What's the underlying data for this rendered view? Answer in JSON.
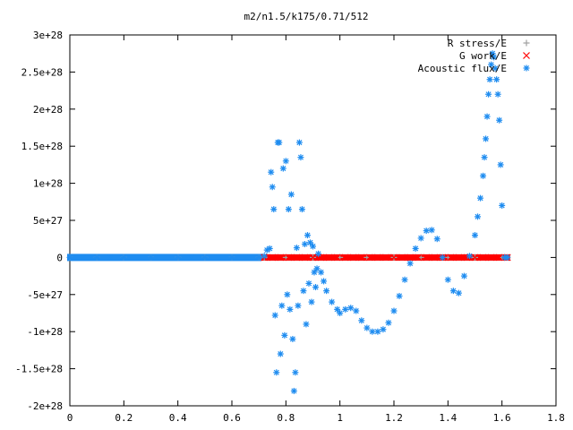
{
  "chart_data": {
    "type": "scatter",
    "title": "m2/n1.5/k175/0.71/512",
    "xlabel": "",
    "ylabel": "",
    "xlim": [
      0,
      1.8
    ],
    "ylim": [
      -2e+28,
      3e+28
    ],
    "x_ticks": [
      {
        "value": 0,
        "label": "0"
      },
      {
        "value": 0.2,
        "label": "0.2"
      },
      {
        "value": 0.4,
        "label": "0.4"
      },
      {
        "value": 0.6,
        "label": "0.6"
      },
      {
        "value": 0.8,
        "label": "0.8"
      },
      {
        "value": 1.0,
        "label": "1"
      },
      {
        "value": 1.2,
        "label": "1.2"
      },
      {
        "value": 1.4,
        "label": "1.4"
      },
      {
        "value": 1.6,
        "label": "1.6"
      },
      {
        "value": 1.8,
        "label": "1.8"
      }
    ],
    "y_ticks": [
      {
        "value": 3e+28,
        "label": "3e+28"
      },
      {
        "value": 2.5e+28,
        "label": "2.5e+28"
      },
      {
        "value": 2e+28,
        "label": "2e+28"
      },
      {
        "value": 1.5e+28,
        "label": "1.5e+28"
      },
      {
        "value": 1e+28,
        "label": "1e+28"
      },
      {
        "value": 5e+27,
        "label": "5e+27"
      },
      {
        "value": 0,
        "label": "0"
      },
      {
        "value": -5e+27,
        "label": "-5e+27"
      },
      {
        "value": -1e+28,
        "label": "-1e+28"
      },
      {
        "value": -1.5e+28,
        "label": "-1.5e+28"
      },
      {
        "value": -2e+28,
        "label": "-2e+28"
      }
    ],
    "grid": false,
    "legend_position": "top-right",
    "series": [
      {
        "name": "R stress/E",
        "marker": "plus",
        "color": "#a0a0a0",
        "x": [
          0.0,
          0.1,
          0.2,
          0.3,
          0.4,
          0.5,
          0.6,
          0.7,
          0.72,
          0.8,
          0.9,
          1.0,
          1.1,
          1.2,
          1.3,
          1.4,
          1.5,
          1.6,
          1.62
        ],
        "y": [
          0,
          0,
          0,
          0,
          0,
          0,
          0,
          0,
          0,
          0,
          0,
          0,
          0,
          0,
          0,
          0,
          0,
          0,
          0
        ]
      },
      {
        "name": "G work/E",
        "marker": "cross",
        "color": "#ff0000",
        "x": [
          0.72,
          0.75,
          0.78,
          0.81,
          0.84,
          0.87,
          0.9,
          0.93,
          0.96,
          0.99,
          1.02,
          1.05,
          1.08,
          1.11,
          1.14,
          1.17,
          1.2,
          1.23,
          1.26,
          1.29,
          1.32,
          1.35,
          1.38,
          1.41,
          1.44,
          1.47,
          1.5,
          1.53,
          1.56,
          1.59,
          1.62
        ],
        "y": [
          0,
          0,
          0,
          0,
          0,
          0,
          0,
          0,
          0,
          0,
          0,
          0,
          0,
          0,
          0,
          0,
          0,
          0,
          0,
          0,
          0,
          0,
          0,
          0,
          0,
          0,
          0,
          0,
          0,
          0,
          0
        ]
      },
      {
        "name": "Acoustic flux/E",
        "marker": "star",
        "color": "#1e8cf0",
        "x": [
          0.0,
          0.05,
          0.1,
          0.15,
          0.2,
          0.25,
          0.3,
          0.35,
          0.4,
          0.45,
          0.5,
          0.55,
          0.6,
          0.65,
          0.7,
          0.72,
          0.73,
          0.74,
          0.745,
          0.75,
          0.755,
          0.76,
          0.765,
          0.77,
          0.775,
          0.78,
          0.785,
          0.79,
          0.795,
          0.8,
          0.805,
          0.81,
          0.815,
          0.82,
          0.825,
          0.83,
          0.835,
          0.84,
          0.845,
          0.85,
          0.855,
          0.86,
          0.865,
          0.87,
          0.875,
          0.88,
          0.885,
          0.89,
          0.895,
          0.9,
          0.905,
          0.91,
          0.915,
          0.92,
          0.93,
          0.94,
          0.95,
          0.97,
          0.99,
          1.0,
          1.02,
          1.04,
          1.06,
          1.08,
          1.1,
          1.12,
          1.14,
          1.16,
          1.18,
          1.2,
          1.22,
          1.24,
          1.26,
          1.28,
          1.3,
          1.32,
          1.34,
          1.36,
          1.38,
          1.4,
          1.42,
          1.44,
          1.46,
          1.48,
          1.5,
          1.51,
          1.52,
          1.53,
          1.535,
          1.54,
          1.545,
          1.55,
          1.555,
          1.56,
          1.565,
          1.57,
          1.575,
          1.58,
          1.585,
          1.59,
          1.595,
          1.6,
          1.61,
          1.62
        ],
        "y": [
          0,
          0,
          0,
          0,
          0,
          0,
          0,
          0,
          0,
          0,
          0,
          0,
          0,
          0,
          0,
          2e+26,
          1e+27,
          1.2e+27,
          1.15e+28,
          9.5e+27,
          6.5e+27,
          -7.8e+27,
          -1.55e+28,
          1.55e+28,
          1.55e+28,
          -1.3e+28,
          -6.5e+27,
          1.2e+28,
          -1.05e+28,
          1.3e+28,
          -5e+27,
          6.5e+27,
          -7e+27,
          8.5e+27,
          -1.1e+28,
          -1.8e+28,
          -1.55e+28,
          1.3e+27,
          -6.5e+27,
          1.55e+28,
          1.35e+28,
          6.5e+27,
          -4.5e+27,
          1.8e+27,
          -9e+27,
          3e+27,
          -3.5e+27,
          2e+27,
          -6e+27,
          1.5e+27,
          -2e+27,
          -4e+27,
          -1.5e+27,
          5e+26,
          -2e+27,
          -3.2e+27,
          -4.5e+27,
          -6e+27,
          -7e+27,
          -7.5e+27,
          -7e+27,
          -6.8e+27,
          -7.2e+27,
          -8.5e+27,
          -9.5e+27,
          -1e+28,
          -1e+28,
          -9.7e+27,
          -8.8e+27,
          -7.2e+27,
          -5.2e+27,
          -3e+27,
          -8e+26,
          1.2e+27,
          2.6e+27,
          3.6e+27,
          3.7e+27,
          2.5e+27,
          0,
          -3e+27,
          -4.5e+27,
          -4.8e+27,
          -2.5e+27,
          2e+26,
          3e+27,
          5.5e+27,
          8e+27,
          1.1e+28,
          1.35e+28,
          1.6e+28,
          1.9e+28,
          2.2e+28,
          2.4e+28,
          2.6e+28,
          2.75e+28,
          2.7e+28,
          2.55e+28,
          2.4e+28,
          2.2e+28,
          1.85e+28,
          1.25e+28,
          7e+27,
          0,
          0
        ]
      }
    ]
  }
}
